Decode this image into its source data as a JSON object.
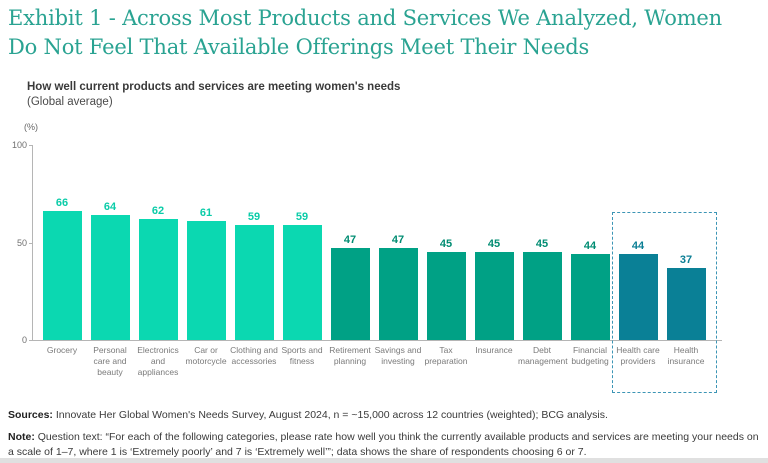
{
  "exhibit": {
    "title": "Exhibit 1 - Across Most Products and Services We Analyzed, Women Do Not Feel That Available Offerings Meet Their Needs"
  },
  "chart_data": {
    "type": "bar",
    "title": "How well current products and services are meeting women's needs",
    "subtitle": "(Global average)",
    "unit_label": "(%)",
    "ylim": [
      0,
      100
    ],
    "yticks": [
      0,
      50,
      100
    ],
    "grid": false,
    "legend": false,
    "categories": [
      "Grocery",
      "Personal care and beauty",
      "Electronics and appliances",
      "Car or motorcycle",
      "Clothing and accessories",
      "Sports and fitness",
      "Retirement planning",
      "Savings and investing",
      "Tax preparation",
      "Insurance",
      "Debt management",
      "Financial budgeting",
      "Health care providers",
      "Health insurance"
    ],
    "values": [
      66,
      64,
      62,
      61,
      59,
      59,
      47,
      47,
      45,
      45,
      45,
      44,
      44,
      37
    ],
    "groups": [
      "consumer",
      "consumer",
      "consumer",
      "consumer",
      "consumer",
      "consumer",
      "financial",
      "financial",
      "financial",
      "financial",
      "financial",
      "financial",
      "health",
      "health"
    ],
    "group_colors": {
      "consumer": "#0bd8b1",
      "financial": "#00a185",
      "health": "#0a8096"
    },
    "value_label_colors": {
      "consumer": "#0acca8",
      "financial": "#008c72",
      "health": "#0a7e94"
    },
    "highlight": {
      "categories": [
        "Health care providers",
        "Health insurance"
      ],
      "style": "dashed",
      "border_color": "#3c95b5"
    }
  },
  "footer": {
    "sources_label": "Sources:",
    "sources_text": "Innovate Her Global Women's Needs Survey, August 2024, n = ~15,000 across 12 countries (weighted); BCG analysis.",
    "note_label": "Note:",
    "note_text": "Question text: “For each of the following categories, please rate how well you think the currently available products and services are meeting your needs on a scale of 1–7, where 1 is ‘Extremely poorly’ and 7 is ‘Extremely well’”; data shows the share of respondents choosing 6 or 7."
  }
}
